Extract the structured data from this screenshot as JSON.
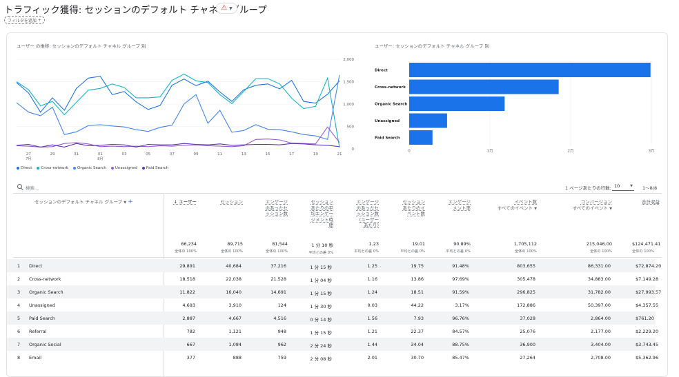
{
  "header": {
    "title": "トラフィック獲得: セッションのデフォルト チャネル グループ",
    "filter_chip": "フィルタを追加"
  },
  "colors": {
    "direct": "#1a73e8",
    "cross_network": "#12b5cb",
    "organic": "#4285f4",
    "unassigned": "#9c5bd3",
    "paid": "#5e35b1",
    "bar": "#1a73e8"
  },
  "line_chart": {
    "title": "ユーザー の推移: セッションのデフォルト チャネル グループ 別",
    "y_ticks": [
      "2,000",
      "1,500",
      "1,000",
      "500",
      "0"
    ],
    "x_ticks": [
      {
        "d": "27",
        "m": "7月"
      },
      {
        "d": "29"
      },
      {
        "d": "31"
      },
      {
        "d": "01",
        "m": "8月"
      },
      {
        "d": "03"
      },
      {
        "d": "05"
      },
      {
        "d": "07"
      },
      {
        "d": "09"
      },
      {
        "d": "11"
      },
      {
        "d": "13"
      },
      {
        "d": "15"
      },
      {
        "d": "17"
      },
      {
        "d": "19"
      },
      {
        "d": "21"
      }
    ],
    "legend": [
      "Direct",
      "Cross-network",
      "Organic Search",
      "Unassigned",
      "Paid Search"
    ]
  },
  "bar_chart": {
    "title": "ユーザー: セッションのデフォルト チャネル グループ 別",
    "x_ticks": [
      "0",
      "1万",
      "2万",
      "3万"
    ]
  },
  "toolbar": {
    "search_placeholder": "検索...",
    "rows_label": "1 ページあたりの行数:",
    "rows_value": "10",
    "range": "1〜8/8"
  },
  "table": {
    "dim_header": "セッションのデフォルト チャネル グループ",
    "col_users": "↓ ユーザー",
    "col_sessions": "セッション",
    "col_eng_sessions": [
      "エンゲージ",
      "のあったセ",
      "ッション数"
    ],
    "col_avg_time": [
      "セッション",
      "あたりの平",
      "均エンゲー",
      "ジメント時",
      "間"
    ],
    "col_eng_per_user": [
      "エンゲージ",
      "のあったセ",
      "ッション数",
      "(ユーザー",
      "あたり)"
    ],
    "col_events_per_session": [
      "セッション",
      "あたりのイ",
      "ベント数"
    ],
    "col_eng_rate": [
      "エンゲージ",
      "メント率"
    ],
    "col_events": [
      "イベント数",
      "すべてのイベント"
    ],
    "col_conversions": [
      "コンバージョン",
      "すべてのイベント"
    ],
    "col_revenue": "合計収益",
    "totals": {
      "users": "66,234",
      "users_s": "全体の 100%",
      "sessions": "89,715",
      "sessions_s": "全体の 100%",
      "eng": "81,544",
      "eng_s": "全体の 100%",
      "time": "1 分 10 秒",
      "time_s": "平均との差 0%",
      "epu": "1.23",
      "epu_s": "平均との差 0%",
      "eps": "19.01",
      "eps_s": "平均との差 0%",
      "rate": "90.89%",
      "rate_s": "平均との差 0%",
      "events": "1,705,112",
      "events_s": "全体の 100%",
      "conv": "215,046.00",
      "conv_s": "全体の 100%",
      "rev": "$124,471.41",
      "rev_s": "全体の 100%"
    },
    "rows": [
      {
        "i": "1",
        "name": "Direct",
        "users": "29,891",
        "sessions": "40,684",
        "eng": "37,216",
        "time": "1 分 15 秒",
        "epu": "1.25",
        "eps": "19.75",
        "rate": "91.48%",
        "events": "803,655",
        "conv": "86,331.00",
        "rev": "$72,874.20"
      },
      {
        "i": "2",
        "name": "Cross-network",
        "users": "18,518",
        "sessions": "22,038",
        "eng": "21,528",
        "time": "1 分 04 秒",
        "epu": "1.16",
        "eps": "13.86",
        "rate": "97.69%",
        "events": "305,478",
        "conv": "34,883.00",
        "rev": "$7,149.28"
      },
      {
        "i": "3",
        "name": "Organic Search",
        "users": "11,822",
        "sessions": "16,040",
        "eng": "14,691",
        "time": "1 分 15 秒",
        "epu": "1.24",
        "eps": "18.51",
        "rate": "91.59%",
        "events": "296,825",
        "conv": "31,782.00",
        "rev": "$27,993.57"
      },
      {
        "i": "4",
        "name": "Unassigned",
        "users": "4,693",
        "sessions": "3,910",
        "eng": "124",
        "time": "1 分 30 秒",
        "epu": "0.03",
        "eps": "44.22",
        "rate": "3.17%",
        "events": "172,886",
        "conv": "50,397.00",
        "rev": "$4,357.55"
      },
      {
        "i": "5",
        "name": "Paid Search",
        "users": "2,887",
        "sessions": "4,667",
        "eng": "4,516",
        "time": "0 分 14 秒",
        "epu": "1.56",
        "eps": "7.93",
        "rate": "96.76%",
        "events": "37,028",
        "conv": "2,864.00",
        "rev": "$761.20"
      },
      {
        "i": "6",
        "name": "Referral",
        "users": "782",
        "sessions": "1,121",
        "eng": "948",
        "time": "1 分 15 秒",
        "epu": "1.21",
        "eps": "22.37",
        "rate": "84.57%",
        "events": "25,076",
        "conv": "2,177.00",
        "rev": "$2,229.20"
      },
      {
        "i": "7",
        "name": "Organic Social",
        "users": "667",
        "sessions": "1,084",
        "eng": "962",
        "time": "2 分 24 秒",
        "epu": "1.44",
        "eps": "34.04",
        "rate": "88.75%",
        "events": "36,900",
        "conv": "3,404.00",
        "rev": "$3,743.45"
      },
      {
        "i": "8",
        "name": "Email",
        "users": "377",
        "sessions": "888",
        "eng": "759",
        "time": "2 分 08 秒",
        "epu": "2.01",
        "eps": "30.70",
        "rate": "85.47%",
        "events": "27,264",
        "conv": "2,708.00",
        "rev": "$5,362.96"
      }
    ]
  },
  "chart_data": [
    {
      "type": "line",
      "title": "ユーザー の推移: セッションのデフォルト チャネル グループ 別",
      "ylim": [
        0,
        2000
      ],
      "x": [
        "07-26",
        "07-27",
        "07-28",
        "07-29",
        "07-30",
        "07-31",
        "08-01",
        "08-02",
        "08-03",
        "08-04",
        "08-05",
        "08-06",
        "08-07",
        "08-08",
        "08-09",
        "08-10",
        "08-11",
        "08-12",
        "08-13",
        "08-14",
        "08-15",
        "08-16",
        "08-17",
        "08-18",
        "08-19",
        "08-20",
        "08-21",
        "08-22"
      ],
      "series": [
        {
          "name": "Direct",
          "values": [
            1480,
            1250,
            820,
            1140,
            860,
            1350,
            1580,
            1620,
            1210,
            1280,
            1050,
            880,
            970,
            1420,
            1560,
            1410,
            1510,
            1270,
            1060,
            1320,
            1420,
            1450,
            1340,
            1530,
            1060,
            1020,
            1220,
            1520
          ]
        },
        {
          "name": "Cross-network",
          "values": [
            1500,
            1320,
            960,
            1060,
            760,
            1040,
            1310,
            1350,
            1450,
            1370,
            1140,
            1140,
            1160,
            1530,
            1670,
            1520,
            1480,
            1210,
            1010,
            1280,
            1570,
            1570,
            1450,
            1130,
            900,
            950,
            1580,
            30
          ]
        },
        {
          "name": "Organic Search",
          "values": [
            1030,
            820,
            740,
            930,
            320,
            380,
            520,
            540,
            510,
            490,
            430,
            390,
            480,
            530,
            1000,
            1210,
            570,
            860,
            370,
            410,
            540,
            440,
            430,
            380,
            320,
            290,
            210,
            1650
          ]
        },
        {
          "name": "Unassigned",
          "values": [
            70,
            60,
            40,
            50,
            120,
            140,
            110,
            50,
            60,
            50,
            60,
            50,
            70,
            60,
            80,
            90,
            70,
            60,
            50,
            70,
            210,
            220,
            200,
            130,
            120,
            110,
            490,
            140
          ]
        },
        {
          "name": "Paid Search",
          "values": [
            80,
            100,
            40,
            90,
            40,
            120,
            70,
            80,
            100,
            90,
            40,
            100,
            90,
            90,
            120,
            100,
            90,
            110,
            80,
            90,
            100,
            100,
            90,
            120,
            110,
            90,
            80,
            50
          ]
        }
      ]
    },
    {
      "type": "bar",
      "title": "ユーザー: セッションのデフォルト チャネル グループ 別",
      "categories": [
        "Direct",
        "Cross-network",
        "Organic Search",
        "Unassigned",
        "Paid Search"
      ],
      "values": [
        29891,
        18518,
        11822,
        4693,
        2887
      ],
      "xlim": [
        0,
        30000
      ]
    }
  ]
}
